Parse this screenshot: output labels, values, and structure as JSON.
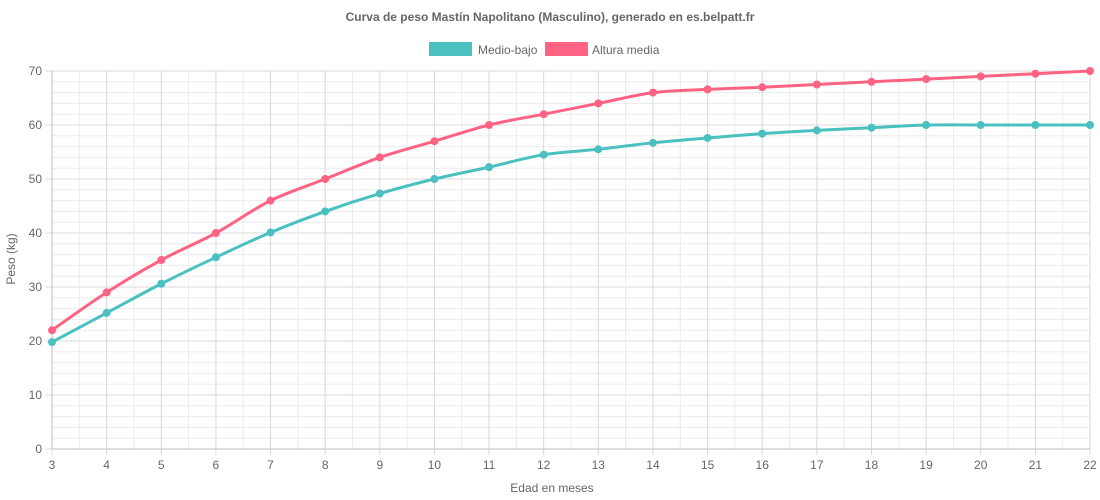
{
  "chart_data": {
    "type": "line",
    "title": "Curva de peso Mastín Napolitano (Masculino), generado en es.belpatt.fr",
    "xlabel": "Edad en meses",
    "ylabel": "Peso (kg)",
    "x": [
      3,
      4,
      5,
      6,
      7,
      8,
      9,
      10,
      11,
      12,
      13,
      14,
      15,
      16,
      17,
      18,
      19,
      20,
      21,
      22
    ],
    "ylim": [
      0,
      70
    ],
    "yticks": [
      0,
      10,
      20,
      30,
      40,
      50,
      60,
      70
    ],
    "grid": true,
    "minor_grid": true,
    "legend_position": "top-center",
    "series": [
      {
        "name": "Medio-bajo",
        "color": "#4bc0c0",
        "values": [
          19.8,
          25.2,
          30.6,
          35.5,
          40.1,
          44.0,
          47.3,
          50.0,
          52.2,
          54.5,
          55.5,
          56.7,
          57.6,
          58.4,
          59.0,
          59.5,
          60.0,
          60.0,
          60.0,
          60.0
        ]
      },
      {
        "name": "Altura media",
        "color": "#ff6384",
        "values": [
          22.0,
          29.0,
          35.0,
          40.0,
          46.0,
          50.0,
          54.0,
          57.0,
          60.0,
          62.0,
          64.0,
          66.0,
          66.6,
          67.0,
          67.5,
          68.0,
          68.5,
          69.0,
          69.5,
          70.0
        ]
      }
    ]
  }
}
